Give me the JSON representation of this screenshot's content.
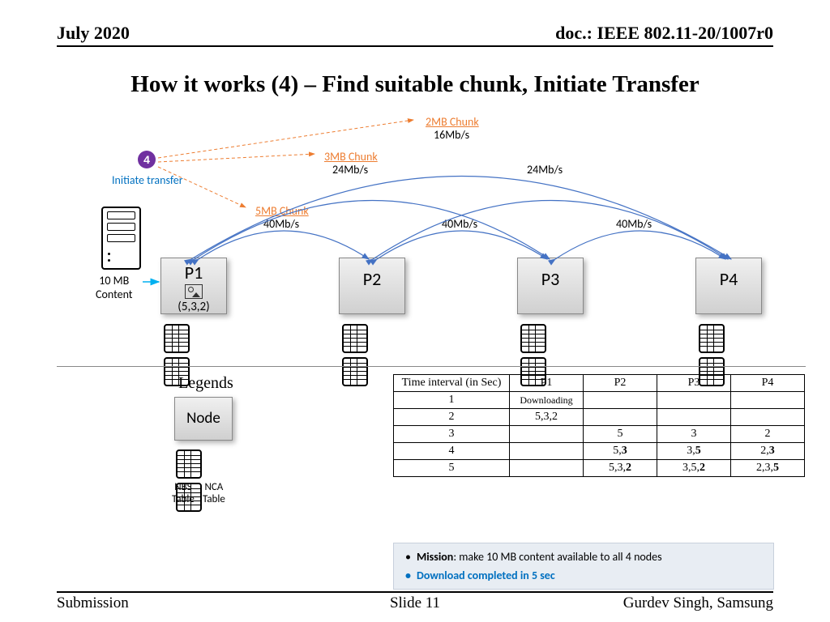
{
  "header": {
    "date": "July 2020",
    "doc": "doc.: IEEE 802.11-20/1007r0"
  },
  "title": "How it works (4) – Find suitable chunk, Initiate Transfer",
  "step": {
    "number": "4",
    "label": "Initiate transfer"
  },
  "server_label": "10 MB\nContent",
  "chunks": [
    {
      "name": "2MB Chunk",
      "rate": "16Mb/s"
    },
    {
      "name": "3MB Chunk",
      "rate": "24Mb/s"
    },
    {
      "name": "5MB Chunk",
      "rate": "40Mb/s"
    }
  ],
  "rates": {
    "r24_2": "24Mb/s",
    "r40_2": "40Mb/s",
    "r40_3": "40Mb/s"
  },
  "nodes": {
    "p1": {
      "label": "P1",
      "tuple": "(5,3,2)"
    },
    "p2": {
      "label": "P2"
    },
    "p3": {
      "label": "P3"
    },
    "p4": {
      "label": "P4"
    }
  },
  "legends": {
    "title": "Legends",
    "node": "Node",
    "nbs": "NBS\nTable",
    "nca": "NCA\nTable"
  },
  "table": {
    "headers": [
      "Time interval (in Sec)",
      "P1",
      "P2",
      "P3",
      "P4"
    ],
    "rows": [
      [
        "1",
        "Downloading",
        "",
        "",
        ""
      ],
      [
        "2",
        "5,3,2",
        "",
        "",
        ""
      ],
      [
        "3",
        "",
        "5",
        "3",
        "2"
      ],
      [
        "4",
        "",
        "5,3",
        "3,5",
        "2,3"
      ],
      [
        "5",
        "",
        "5,3,2",
        "3,5,2",
        "2,3,5"
      ]
    ]
  },
  "mission": {
    "line1_label": "Mission",
    "line1_text": ": make 10 MB content available to all 4 nodes",
    "line2": "Download completed in 5 sec"
  },
  "footer": {
    "left": "Submission",
    "center": "Slide 11",
    "right": "Gurdev Singh, Samsung"
  },
  "colors": {
    "orange": "#ed7d31",
    "blue": "#0070c0",
    "purple": "#7030a0",
    "arc": "#4472c4"
  }
}
